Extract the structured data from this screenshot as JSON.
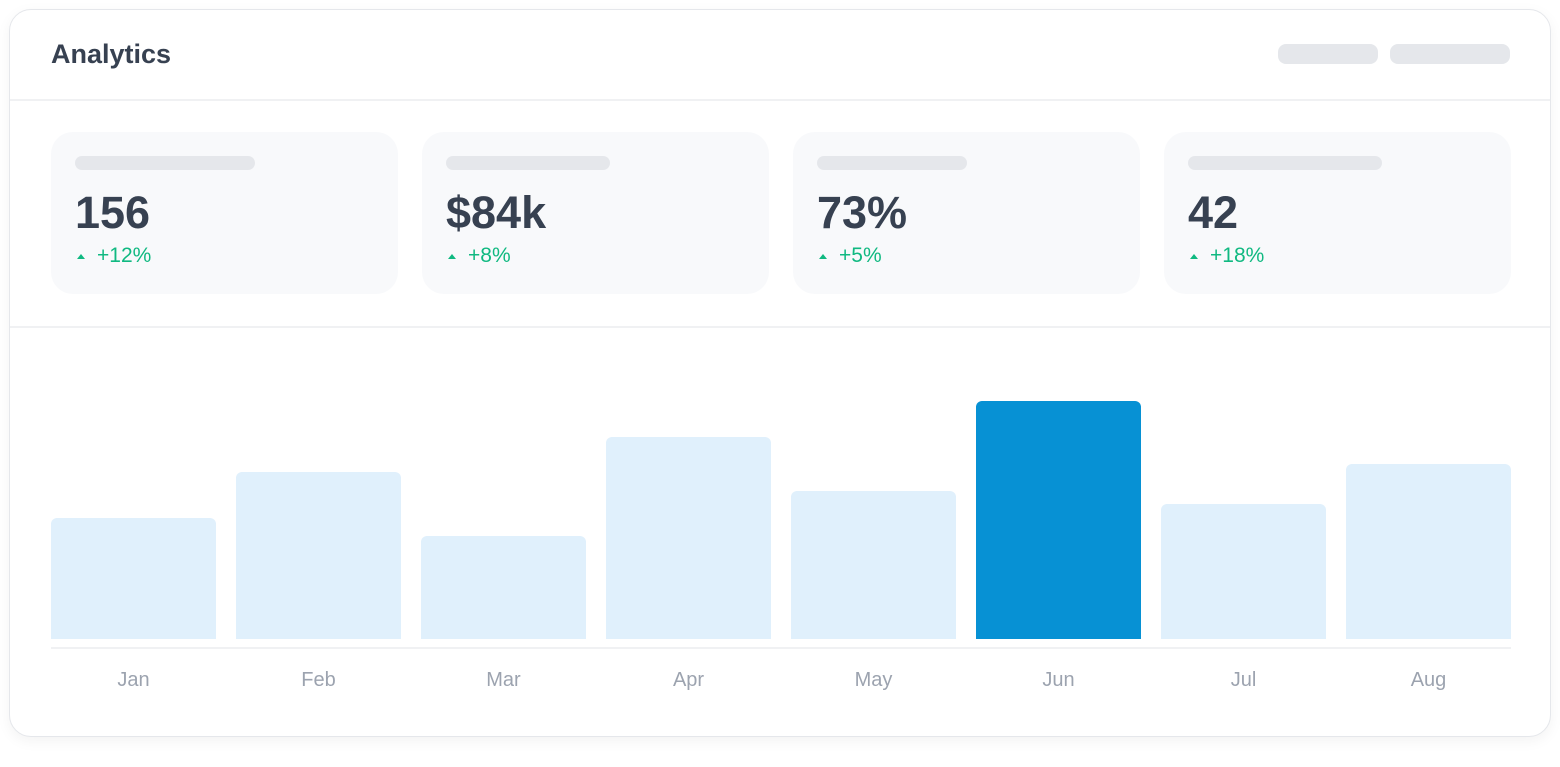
{
  "header": {
    "title": "Analytics"
  },
  "stats": [
    {
      "value": "156",
      "change": "+12%"
    },
    {
      "value": "$84k",
      "change": "+8%"
    },
    {
      "value": "73%",
      "change": "+5%"
    },
    {
      "value": "42",
      "change": "+18%"
    }
  ],
  "colors": {
    "bar": "#e0f0fc",
    "highlight": "#0791d4",
    "positive": "#10b981"
  },
  "chart_data": {
    "type": "bar",
    "categories": [
      "Jan",
      "Feb",
      "Mar",
      "Apr",
      "May",
      "Jun",
      "Jul",
      "Aug"
    ],
    "values": [
      45,
      62,
      38,
      75,
      55,
      88,
      50,
      65
    ],
    "highlighted": "Jun",
    "ylim": [
      0,
      100
    ],
    "grid": false
  }
}
